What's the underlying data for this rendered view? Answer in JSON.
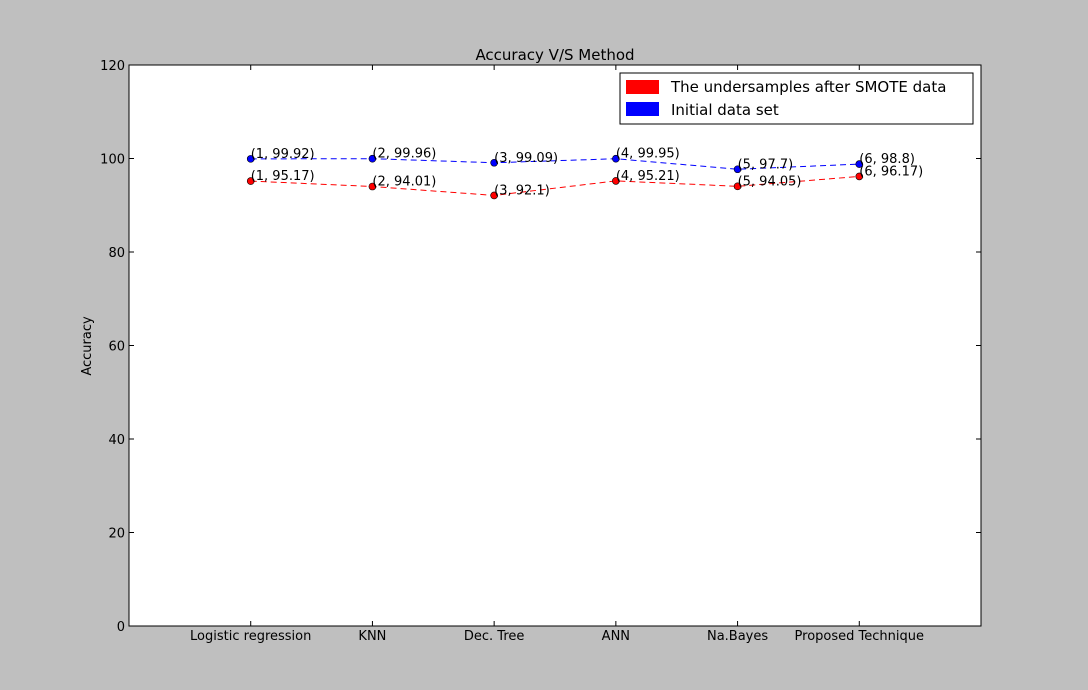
{
  "chart_data": {
    "type": "line",
    "title": "Accuracy V/S Method",
    "xlabel": "",
    "ylabel": "Accuracy",
    "categories": [
      "Logistic regression",
      "KNN",
      "Dec. Tree",
      "ANN",
      "Na.Bayes",
      "Proposed Technique"
    ],
    "x": [
      1,
      2,
      3,
      4,
      5,
      6
    ],
    "xlim": [
      0,
      7
    ],
    "ylim": [
      0,
      120
    ],
    "yticks": [
      0,
      20,
      40,
      60,
      80,
      100,
      120
    ],
    "grid": false,
    "legend_position": "top-right",
    "series": [
      {
        "name": "The undersamples after SMOTE data",
        "color": "#ff0000",
        "values": [
          95.17,
          94.01,
          92.1,
          95.21,
          94.05,
          96.17
        ],
        "labels": [
          "(1, 95.17)",
          "(2, 94.01)",
          "(3, 92.1)",
          "(4, 95.21)",
          "(5, 94.05)",
          "(6, 96.17)"
        ]
      },
      {
        "name": "Initial data set",
        "color": "#0000ff",
        "values": [
          99.92,
          99.96,
          99.09,
          99.95,
          97.7,
          98.8
        ],
        "labels": [
          "(1, 99.92)",
          "(2, 99.96)",
          "(3, 99.09)",
          "(4, 99.95)",
          "(5, 97.7)",
          "(6, 98.8)"
        ]
      }
    ]
  }
}
